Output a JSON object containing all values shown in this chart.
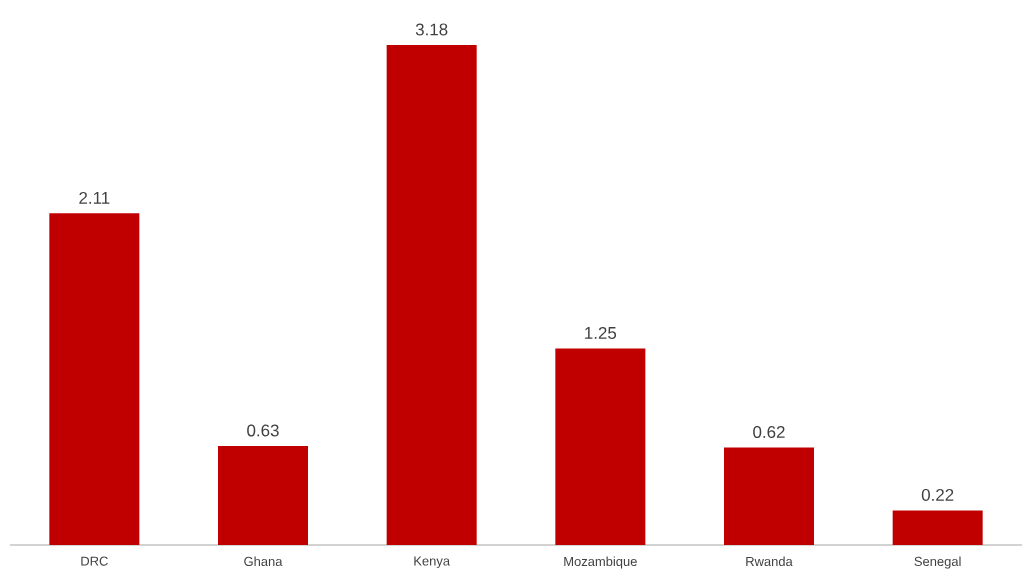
{
  "chart_data": {
    "type": "bar",
    "categories": [
      "DRC",
      "Ghana",
      "Kenya",
      "Mozambique",
      "Rwanda",
      "Senegal"
    ],
    "values": [
      2.11,
      0.63,
      3.18,
      1.25,
      0.62,
      0.22
    ],
    "color": "#c00000",
    "data_labels": true
  }
}
